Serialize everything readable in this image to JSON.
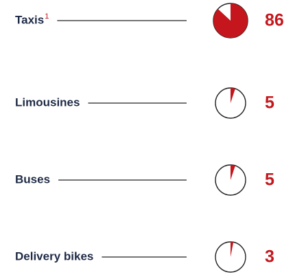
{
  "chart_data": {
    "type": "pie",
    "categories": [
      "Taxis",
      "Limousines",
      "Buses",
      "Delivery bikes"
    ],
    "markers": [
      "1",
      null,
      null,
      null
    ],
    "values": [
      86,
      5,
      5,
      3
    ],
    "color": "#c4161c"
  }
}
